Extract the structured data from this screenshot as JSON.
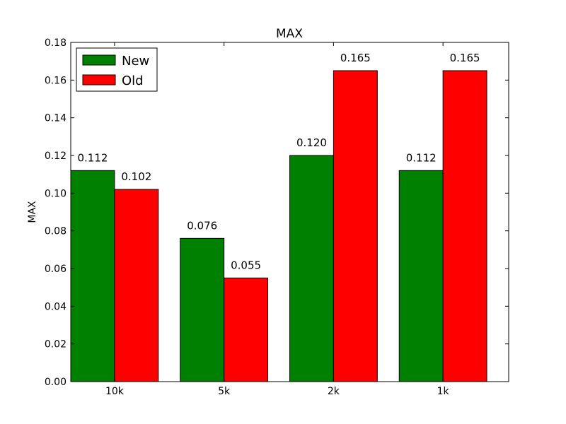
{
  "chart_data": {
    "type": "bar",
    "title": "MAX",
    "xlabel": "",
    "ylabel": "MAX",
    "categories": [
      "10k",
      "5k",
      "2k",
      "1k"
    ],
    "series": [
      {
        "name": "New",
        "color": "#008000",
        "values": [
          0.112,
          0.076,
          0.12,
          0.112
        ],
        "labels": [
          "0.112",
          "0.076",
          "0.120",
          "0.112"
        ]
      },
      {
        "name": "Old",
        "color": "#ff0000",
        "values": [
          0.102,
          0.055,
          0.165,
          0.165
        ],
        "labels": [
          "0.102",
          "0.055",
          "0.165",
          "0.165"
        ]
      }
    ],
    "ylim": [
      0,
      0.18
    ],
    "yticks": [
      "0.00",
      "0.02",
      "0.04",
      "0.06",
      "0.08",
      "0.10",
      "0.12",
      "0.14",
      "0.16",
      "0.18"
    ],
    "grid": false,
    "legend": "top-left"
  }
}
